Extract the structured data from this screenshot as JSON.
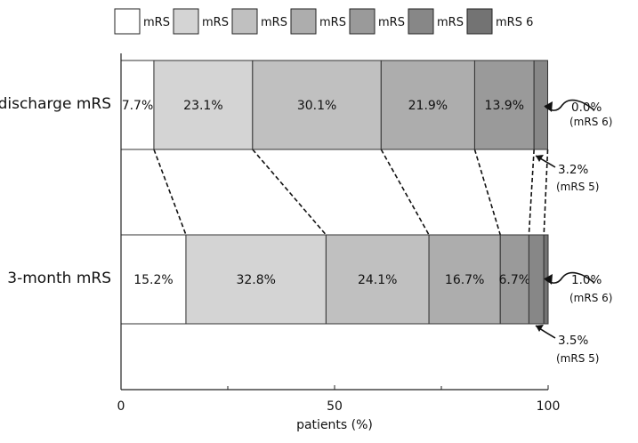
{
  "chart_data": {
    "type": "bar",
    "orientation": "horizontal",
    "stacked": true,
    "categories": [
      "discharge mRS",
      "3-month mRS"
    ],
    "series": [
      {
        "name": "mRS 0",
        "values": [
          7.7,
          15.2
        ],
        "color": "#ffffff"
      },
      {
        "name": "mRS 1",
        "values": [
          23.1,
          32.8
        ],
        "color": "#d4d4d4"
      },
      {
        "name": "mRS 2",
        "values": [
          30.1,
          24.1
        ],
        "color": "#c0c0c0"
      },
      {
        "name": "mRS 3",
        "values": [
          21.9,
          16.7
        ],
        "color": "#adadad"
      },
      {
        "name": "mRS 4",
        "values": [
          13.9,
          6.7
        ],
        "color": "#9a9a9a"
      },
      {
        "name": "mRS 5",
        "values": [
          3.2,
          3.5
        ],
        "color": "#878787"
      },
      {
        "name": "mRS 6",
        "values": [
          0.0,
          1.0
        ],
        "color": "#737373"
      }
    ],
    "segment_labels": [
      [
        "7.7%",
        "23.1%",
        "30.1%",
        "21.9%",
        "13.9%",
        "",
        ""
      ],
      [
        "15.2%",
        "32.8%",
        "24.1%",
        "16.7%",
        "6.7%",
        "",
        ""
      ]
    ],
    "annotations": [
      {
        "value": "0.0%",
        "sub": "(mRS 6)",
        "category": 0,
        "series": 6
      },
      {
        "value": "3.2%",
        "sub": "(mRS 5)",
        "category": 0,
        "series": 5
      },
      {
        "value": "1.0%",
        "sub": "(mRS 6)",
        "category": 1,
        "series": 6
      },
      {
        "value": "3.5%",
        "sub": "(mRS 5)",
        "category": 1,
        "series": 5
      }
    ],
    "xlabel": "patients (%)",
    "xlim": [
      0,
      100
    ],
    "xticks": [
      0,
      50,
      100
    ],
    "xtick_labels": [
      "0",
      "50",
      "100"
    ],
    "legend_position": "top"
  }
}
